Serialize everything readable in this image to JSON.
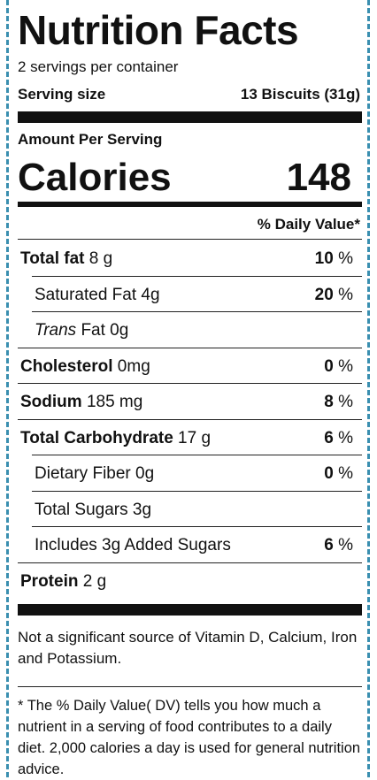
{
  "title": "Nutrition Facts",
  "servings_per_container": "2 servings per container",
  "serving_size_label": "Serving size",
  "serving_size_value": "13 Biscuits (31g)",
  "amount_per_serving": "Amount Per Serving",
  "calories_label": "Calories",
  "calories_value": "148",
  "daily_value_header": "% Daily Value*",
  "nutrients": [
    {
      "name": "Total fat",
      "amount": " 8 g",
      "bold": true,
      "indent": 0,
      "percent": "10",
      "italic_prefix": ""
    },
    {
      "name": "",
      "amount": "Saturated Fat 4g",
      "bold": false,
      "indent": 16,
      "percent": "20",
      "italic_prefix": ""
    },
    {
      "name": "",
      "amount": " Fat 0g",
      "bold": false,
      "indent": 16,
      "percent": "",
      "italic_prefix": "Trans"
    },
    {
      "name": "Cholesterol",
      "amount": " 0mg",
      "bold": true,
      "indent": 0,
      "percent": "0",
      "italic_prefix": ""
    },
    {
      "name": "Sodium",
      "amount": " 185 mg",
      "bold": true,
      "indent": 0,
      "percent": "8",
      "italic_prefix": ""
    },
    {
      "name": "Total Carbohydrate",
      "amount": " 17 g",
      "bold": true,
      "indent": 0,
      "percent": "6",
      "italic_prefix": ""
    },
    {
      "name": "",
      "amount": "Dietary Fiber 0g",
      "bold": false,
      "indent": 16,
      "percent": "0",
      "italic_prefix": ""
    },
    {
      "name": "",
      "amount": "Total Sugars 3g",
      "bold": false,
      "indent": 16,
      "percent": "",
      "italic_prefix": ""
    },
    {
      "name": "",
      "amount": "Includes 3g Added Sugars",
      "bold": false,
      "indent": 16,
      "percent": "6",
      "italic_prefix": ""
    },
    {
      "name": "Protein",
      "amount": " 2 g",
      "bold": true,
      "indent": 0,
      "percent": "",
      "italic_prefix": ""
    }
  ],
  "percent_symbol": "%",
  "vitamin_note": "Not a significant source of Vitamin D, Calcium, Iron and Potassium.",
  "footnote": "* The % Daily Value( DV) tells you how much a nutrient in a serving of food contributes to a daily diet. 2,000 calories a day is used for general nutrition advice.",
  "colors": {
    "border_dash": "#3a8fb0",
    "text": "#111111",
    "background": "#ffffff"
  }
}
